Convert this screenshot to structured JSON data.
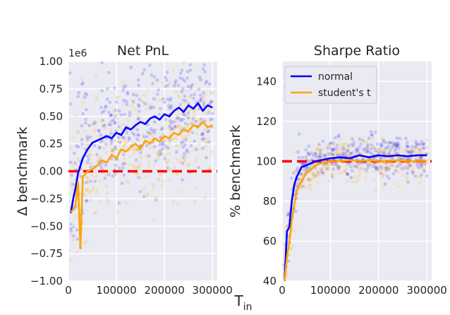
{
  "figure": {
    "xlabel": "T",
    "xlabel_sub": "in"
  },
  "colors": {
    "normal": "#0000ff",
    "students_t": "#ffa500",
    "benchmark": "#ff0000",
    "background": "#eaeaf2",
    "grid": "#ffffff"
  },
  "chart_data": [
    {
      "type": "line",
      "title": "Net PnL",
      "ylabel": "Δ benchmark",
      "offset_text": "1e6",
      "xlim": [
        0,
        310000
      ],
      "ylim": [
        -1.0,
        1.0
      ],
      "xticks": [
        0,
        100000,
        200000,
        300000
      ],
      "xtick_labels": [
        "0",
        "100000",
        "200000",
        "300000"
      ],
      "yticks": [
        -1.0,
        -0.75,
        -0.5,
        -0.25,
        0.0,
        0.25,
        0.5,
        0.75,
        1.0
      ],
      "ytick_labels": [
        "−1.00",
        "−0.75",
        "−0.50",
        "−0.25",
        "0.00",
        "0.25",
        "0.50",
        "0.75",
        "1.00"
      ],
      "benchmark_line": 0.0,
      "series": [
        {
          "name": "normal",
          "color": "#0000ff",
          "x": [
            5000,
            10000,
            15000,
            20000,
            25000,
            30000,
            40000,
            50000,
            60000,
            70000,
            80000,
            90000,
            100000,
            110000,
            120000,
            130000,
            140000,
            150000,
            160000,
            170000,
            180000,
            190000,
            200000,
            210000,
            220000,
            230000,
            240000,
            250000,
            260000,
            270000,
            280000,
            290000,
            300000
          ],
          "y": [
            -0.38,
            -0.25,
            -0.15,
            -0.02,
            0.05,
            0.12,
            0.2,
            0.26,
            0.28,
            0.3,
            0.32,
            0.3,
            0.35,
            0.33,
            0.4,
            0.38,
            0.42,
            0.45,
            0.43,
            0.48,
            0.5,
            0.47,
            0.52,
            0.5,
            0.55,
            0.58,
            0.54,
            0.6,
            0.57,
            0.62,
            0.55,
            0.6,
            0.58
          ]
        },
        {
          "name": "student's t",
          "color": "#ffa500",
          "x": [
            5000,
            10000,
            15000,
            20000,
            25000,
            30000,
            40000,
            50000,
            60000,
            70000,
            80000,
            90000,
            100000,
            110000,
            120000,
            130000,
            140000,
            150000,
            160000,
            170000,
            180000,
            190000,
            200000,
            210000,
            220000,
            230000,
            240000,
            250000,
            260000,
            270000,
            280000,
            290000,
            300000
          ],
          "y": [
            -0.37,
            -0.35,
            -0.3,
            -0.1,
            -0.7,
            -0.05,
            0.0,
            0.02,
            0.05,
            0.1,
            0.08,
            0.15,
            0.12,
            0.2,
            0.18,
            0.22,
            0.25,
            0.2,
            0.28,
            0.25,
            0.3,
            0.27,
            0.32,
            0.3,
            0.35,
            0.33,
            0.38,
            0.36,
            0.42,
            0.4,
            0.45,
            0.4,
            0.42
          ]
        }
      ]
    },
    {
      "type": "line",
      "title": "Sharpe Ratio",
      "ylabel": "% benchmark",
      "xlim": [
        0,
        310000
      ],
      "ylim": [
        40,
        150
      ],
      "xticks": [
        0,
        100000,
        200000,
        300000
      ],
      "xtick_labels": [
        "0",
        "100000",
        "200000",
        "300000"
      ],
      "yticks": [
        40,
        60,
        80,
        100,
        120,
        140
      ],
      "ytick_labels": [
        "40",
        "60",
        "80",
        "100",
        "120",
        "140"
      ],
      "benchmark_line": 100,
      "legend_position": "top-left",
      "series": [
        {
          "name": "normal",
          "color": "#0000ff",
          "x": [
            5000,
            10000,
            15000,
            20000,
            25000,
            30000,
            40000,
            50000,
            60000,
            70000,
            80000,
            90000,
            100000,
            120000,
            140000,
            160000,
            180000,
            200000,
            220000,
            240000,
            260000,
            280000,
            300000
          ],
          "y": [
            40,
            65,
            67,
            80,
            88,
            92,
            97,
            98,
            99,
            100,
            100.5,
            101,
            101.5,
            102,
            101.5,
            103,
            102,
            103,
            102.5,
            103,
            102.5,
            103,
            103
          ]
        },
        {
          "name": "student's t",
          "color": "#ffa500",
          "x": [
            5000,
            10000,
            15000,
            20000,
            25000,
            30000,
            40000,
            50000,
            60000,
            70000,
            80000,
            90000,
            100000,
            120000,
            140000,
            160000,
            180000,
            200000,
            220000,
            240000,
            260000,
            280000,
            300000
          ],
          "y": [
            38,
            52,
            60,
            70,
            78,
            85,
            90,
            94,
            96,
            98,
            99,
            99.5,
            100,
            100,
            100.5,
            100,
            100.5,
            100,
            100,
            100.5,
            100,
            100,
            100
          ]
        }
      ]
    }
  ]
}
